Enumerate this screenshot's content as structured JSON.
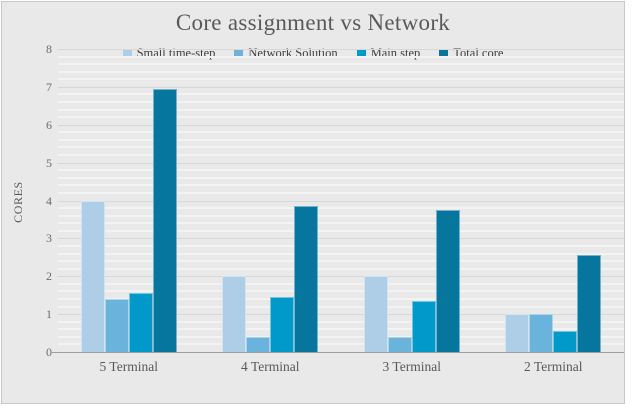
{
  "page": {
    "background": "#ffffff"
  },
  "chart_style": {
    "canvas_background": "#e9e9e9",
    "canvas_border_color": "#c9c9c9",
    "grid_minor_color": "#f3f3f3",
    "grid_major_color": "#d8d8d8",
    "axis_line_color": "#9f9f9f",
    "title_color": "#595959",
    "tick_label_color": "#6b6b6b"
  },
  "chart_data": {
    "type": "bar",
    "title": "Core assignment vs Network",
    "xlabel": "",
    "ylabel": "CORES",
    "categories": [
      "5 Terminal",
      "4 Terminal",
      "3 Terminal",
      "2 Terminal"
    ],
    "series": [
      {
        "name": "Small time-step",
        "color": "#aecde6",
        "values": [
          4.0,
          2.0,
          2.0,
          1.0
        ]
      },
      {
        "name": "Network Solution",
        "color": "#69b3dc",
        "values": [
          1.4,
          0.4,
          0.4,
          1.0
        ]
      },
      {
        "name": "Main step",
        "color": "#0099c9",
        "values": [
          1.55,
          1.45,
          1.35,
          0.55
        ]
      },
      {
        "name": "Total core",
        "color": "#07769e",
        "values": [
          6.95,
          3.85,
          3.75,
          2.55
        ]
      }
    ],
    "ylim": [
      0,
      8
    ],
    "y_ticks": [
      0,
      1,
      2,
      3,
      4,
      5,
      6,
      7,
      8
    ],
    "y_major_step": 1,
    "y_minor_step": 0.2,
    "grid": "horizontal",
    "legend_position": "top"
  }
}
